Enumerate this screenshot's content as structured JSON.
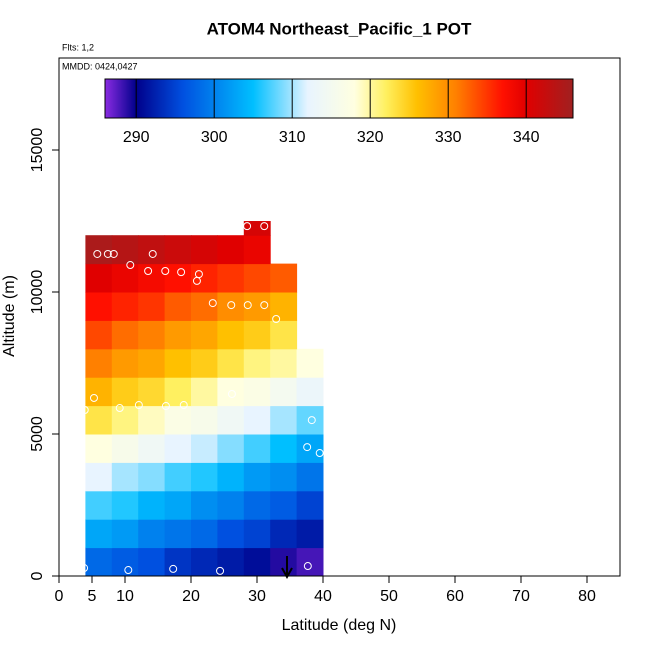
{
  "chart_data": {
    "type": "curtain",
    "title": "ATOM4 Northeast_Pacific_1 POT",
    "annotations": [
      "Flts: 1,2",
      "MMDD: 0424,0427"
    ],
    "x_label": "Latitude (deg N)",
    "y_label": "Altitude (m)",
    "xlim": [
      0,
      85
    ],
    "ylim": [
      0,
      18240
    ],
    "xticks": [
      0,
      5,
      10,
      20,
      30,
      40,
      50,
      60,
      70,
      80
    ],
    "yticks": [
      0,
      5000,
      10000,
      15000
    ],
    "x_bins": [
      4,
      8,
      12,
      16,
      20,
      24,
      28,
      32,
      36,
      40
    ],
    "y_bins": [
      0,
      1000,
      2000,
      3000,
      4000,
      5000,
      6000,
      7000,
      8000,
      9000,
      10000,
      11000,
      12000,
      12500
    ],
    "values": [
      [
        298,
        297,
        296,
        294,
        293,
        292,
        291,
        289,
        288
      ],
      [
        303,
        302,
        300,
        299,
        298,
        296,
        295,
        293,
        292
      ],
      [
        307,
        306,
        304,
        303,
        301,
        300,
        298,
        297,
        295
      ],
      [
        312,
        310,
        309,
        307,
        306,
        304,
        302,
        301,
        299
      ],
      [
        318,
        316,
        314,
        312,
        311,
        309,
        307,
        305,
        303
      ],
      [
        323,
        321,
        319,
        317,
        316,
        314,
        312,
        310,
        308
      ],
      [
        327,
        325,
        324,
        322,
        320,
        318,
        317,
        315,
        313
      ],
      [
        331,
        329,
        328,
        326,
        325,
        323,
        321,
        320,
        318
      ],
      [
        334,
        332,
        331,
        329,
        328,
        326,
        325,
        323,
        null
      ],
      [
        337,
        336,
        335,
        333,
        332,
        330,
        329,
        327,
        null
      ],
      [
        340,
        339,
        338,
        337,
        336,
        335,
        334,
        333,
        null
      ],
      [
        345,
        344,
        343,
        342,
        341,
        340,
        339,
        null,
        null
      ],
      [
        null,
        null,
        null,
        null,
        null,
        null,
        341,
        null,
        null
      ]
    ],
    "points": {
      "x": [
        3.9,
        5.3,
        9.2,
        12.1,
        16.2,
        18.9,
        26.2,
        5.8,
        7.4,
        8.3,
        10.8,
        13.5,
        14.2,
        16.1,
        18.5,
        21.2,
        20.9,
        23.3,
        26.1,
        28.6,
        31.1,
        32.9,
        36.8,
        28.5,
        31.1,
        38.3,
        37.6,
        39.5,
        3.8,
        10.5,
        17.3,
        24.4,
        37.7
      ],
      "y": [
        5845,
        6270,
        5915,
        6020,
        5985,
        6020,
        6410,
        11340,
        11340,
        11340,
        10950,
        10740,
        11340,
        10740,
        10700,
        10630,
        10390,
        9610,
        9540,
        9540,
        9540,
        9050,
        8730,
        12320,
        12320,
        5490,
        4540,
        4330,
        280,
        210,
        250,
        180,
        350
      ]
    },
    "colorbar_lim": [
      286,
      346
    ],
    "colorbar_ticks": [
      290,
      300,
      310,
      320,
      330,
      340
    ],
    "colorscale": [
      [
        286,
        "#8a2be2"
      ],
      [
        290,
        "#00008b"
      ],
      [
        296,
        "#0050e0"
      ],
      [
        305,
        "#00bfff"
      ],
      [
        312,
        "#e8f4ff"
      ],
      [
        318,
        "#ffffe0"
      ],
      [
        322,
        "#fff060"
      ],
      [
        326,
        "#ffc000"
      ],
      [
        331,
        "#ff8000"
      ],
      [
        337,
        "#ff1000"
      ],
      [
        340,
        "#e00000"
      ],
      [
        346,
        "#a02020"
      ]
    ]
  }
}
